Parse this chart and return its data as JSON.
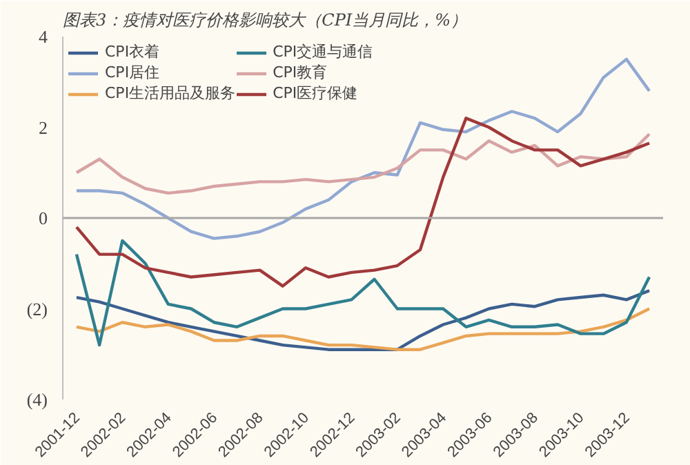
{
  "chart_data": {
    "type": "line",
    "title": "图表3：疫情对医疗价格影响较大（CPI当月同比，%）",
    "categories": [
      "2001-12",
      null,
      "2002-02",
      null,
      "2002-04",
      null,
      "2002-06",
      null,
      "2002-08",
      null,
      "2002-10",
      null,
      "2002-12",
      null,
      "2003-02",
      null,
      "2003-04",
      null,
      "2003-06",
      null,
      "2003-08",
      null,
      "2003-10",
      null,
      "2003-12",
      null
    ],
    "series": [
      {
        "name": "CPI衣着",
        "color": "#3b5f8e",
        "values": [
          -1.75,
          -1.85,
          -2.0,
          -2.15,
          -2.3,
          -2.4,
          -2.5,
          -2.6,
          -2.7,
          -2.8,
          -2.85,
          -2.9,
          -2.9,
          -2.9,
          -2.9,
          -2.6,
          -2.35,
          -2.2,
          -2.0,
          -1.9,
          -1.95,
          -1.8,
          -1.75,
          -1.7,
          -1.8,
          -1.6
        ]
      },
      {
        "name": "CPI居住",
        "color": "#91a8d2",
        "values": [
          0.6,
          0.6,
          0.55,
          0.3,
          0.0,
          -0.3,
          -0.45,
          -0.4,
          -0.3,
          -0.1,
          0.2,
          0.4,
          0.8,
          1.0,
          0.95,
          2.1,
          1.95,
          1.9,
          2.15,
          2.35,
          2.2,
          1.9,
          2.3,
          3.1,
          3.5,
          2.8
        ]
      },
      {
        "name": "CPI生活用品及服务",
        "color": "#e9a556",
        "values": [
          -2.4,
          -2.5,
          -2.3,
          -2.4,
          -2.35,
          -2.5,
          -2.7,
          -2.7,
          -2.6,
          -2.6,
          -2.7,
          -2.8,
          -2.8,
          -2.85,
          -2.9,
          -2.9,
          -2.75,
          -2.6,
          -2.55,
          -2.55,
          -2.55,
          -2.55,
          -2.5,
          -2.4,
          -2.25,
          -2.0
        ]
      },
      {
        "name": "CPI交通与通信",
        "color": "#2f7f8f",
        "values": [
          -0.8,
          -2.8,
          -0.5,
          -1.0,
          -1.9,
          -2.0,
          -2.3,
          -2.4,
          -2.2,
          -2.0,
          -2.0,
          -1.9,
          -1.8,
          -1.35,
          -2.0,
          -2.0,
          -2.0,
          -2.4,
          -2.25,
          -2.4,
          -2.4,
          -2.35,
          -2.55,
          -2.55,
          -2.3,
          -1.3
        ]
      },
      {
        "name": "CPI教育",
        "color": "#d7a3a3",
        "values": [
          1.0,
          1.3,
          0.9,
          0.65,
          0.55,
          0.6,
          0.7,
          0.75,
          0.8,
          0.8,
          0.85,
          0.8,
          0.85,
          0.9,
          1.1,
          1.5,
          1.5,
          1.3,
          1.7,
          1.45,
          1.6,
          1.15,
          1.35,
          1.3,
          1.35,
          1.85
        ]
      },
      {
        "name": "CPI医疗保健",
        "color": "#a0393a",
        "values": [
          -0.2,
          -0.8,
          -0.8,
          -1.1,
          -1.2,
          -1.3,
          -1.25,
          -1.2,
          -1.15,
          -1.5,
          -1.1,
          -1.3,
          -1.2,
          -1.15,
          -1.05,
          -0.7,
          0.9,
          2.2,
          2.0,
          1.7,
          1.5,
          1.5,
          1.15,
          1.3,
          1.45,
          1.65
        ]
      }
    ],
    "ylim": [
      -4,
      4
    ],
    "yticks": [
      {
        "value": -4,
        "label": "(4)"
      },
      {
        "value": -2,
        "label": "(2)"
      },
      0,
      2,
      4
    ],
    "ref_lines": [
      {
        "axis": "y",
        "value": 0,
        "label": null,
        "color": "#a6a6a6"
      }
    ],
    "legend": "top left",
    "grid": false,
    "line_style": "solid"
  }
}
